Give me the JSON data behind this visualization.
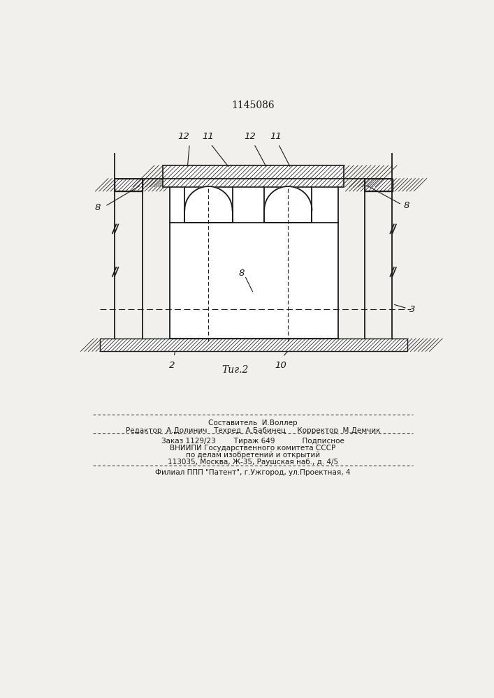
{
  "title": "1145086",
  "fig_label": "Τиг.2",
  "background_color": "#f2f0ed",
  "line_color": "#1a1a1a",
  "page_width": 7.07,
  "page_height": 10.0,
  "footer_lines": [
    "Составитель  И.Воллер",
    "Редактор  А.Долинич   Техред  А.Бабинец     Корректор  М.Демчик",
    "Заказ 1129/23        Тираж 649            Подписное",
    "ВНИИПИ Государственного комитета СССР",
    "по делам изобретений и открытий",
    "113035, Москва, Ж-35, Раушская наб., д. 4/5",
    "Филиал ППП \"Патент\", г.Ужгород, ул.Проектная, 4"
  ]
}
